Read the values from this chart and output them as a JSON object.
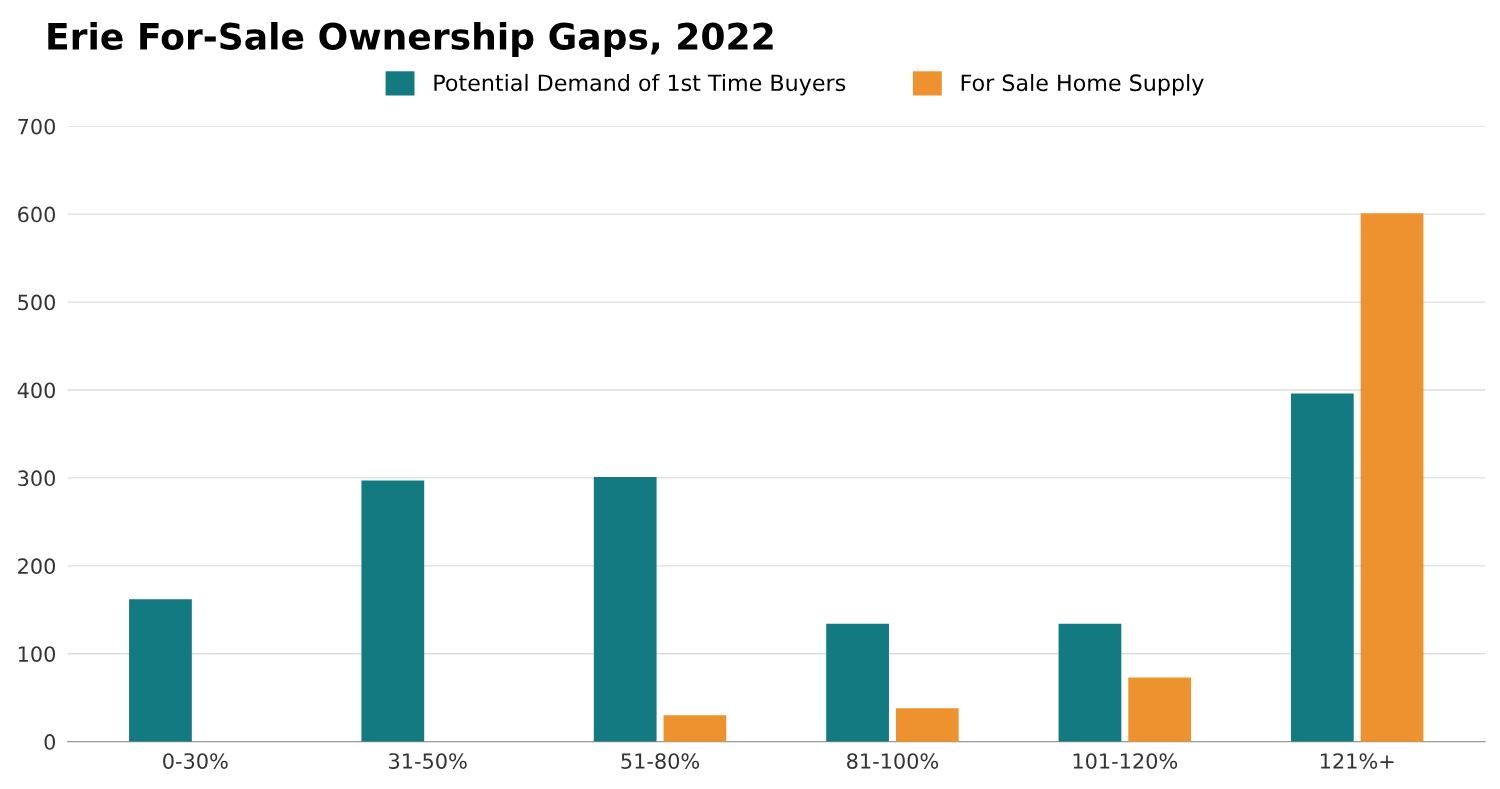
{
  "chart_data": {
    "type": "bar",
    "title": "Erie For-Sale Ownership Gaps, 2022",
    "categories": [
      "0-30%",
      "31-50%",
      "51-80%",
      "81-100%",
      "101-120%",
      "121%+"
    ],
    "series": [
      {
        "name": "Potential Demand of 1st Time Buyers",
        "color": "#127a80",
        "values": [
          162,
          297,
          301,
          134,
          134,
          396
        ]
      },
      {
        "name": "For Sale Home Supply",
        "color": "#ee922f",
        "values": [
          0,
          0,
          30,
          38,
          73,
          601
        ]
      }
    ],
    "ylim": [
      0,
      700
    ],
    "yticks": [
      0,
      100,
      200,
      300,
      400,
      500,
      600,
      700
    ],
    "grid": "y",
    "legend": "top"
  }
}
